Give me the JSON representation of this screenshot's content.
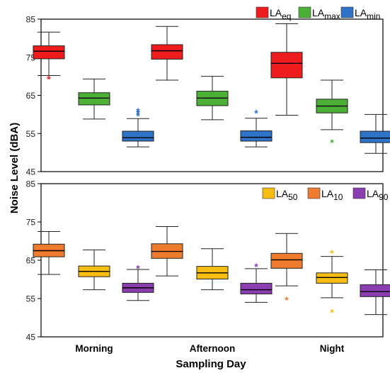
{
  "chart_data": {
    "type": "boxplot",
    "ylabel": "Noise Level (dBA)",
    "xlabel": "Sampling Day",
    "categories": [
      "Morning",
      "Afternoon",
      "Night"
    ],
    "colors": {
      "LAeq": "#ee1c1c",
      "LAmax": "#4caf36",
      "LAmin": "#2f73c9",
      "LA50": "#f8bd12",
      "LA10": "#ef7c2e",
      "LA90": "#8a3eb0"
    },
    "panels": [
      {
        "ylim": [
          45,
          85
        ],
        "yticks": [
          45,
          55,
          65,
          75,
          85
        ],
        "legend_position": "top-right",
        "series": [
          {
            "key": "LAeq",
            "base": "LA",
            "sub": "eq",
            "color": "#ee1c1c",
            "boxes": [
              {
                "min": 70.2,
                "q1": 74.6,
                "median": 76.6,
                "q3": 78.0,
                "max": 81.6,
                "outliers": [
                  69.5
                ]
              },
              {
                "min": 69.0,
                "q1": 74.5,
                "median": 76.7,
                "q3": 78.3,
                "max": 83.1,
                "outliers": []
              },
              {
                "min": 59.8,
                "q1": 69.6,
                "median": 73.4,
                "q3": 76.3,
                "max": 83.8,
                "outliers": []
              }
            ]
          },
          {
            "key": "LAmax",
            "base": "LA",
            "sub": "max",
            "color": "#4caf36",
            "boxes": [
              {
                "min": 58.8,
                "q1": 62.5,
                "median": 64.3,
                "q3": 65.7,
                "max": 69.3,
                "outliers": []
              },
              {
                "min": 58.6,
                "q1": 62.3,
                "median": 64.3,
                "q3": 66.1,
                "max": 70.0,
                "outliers": []
              },
              {
                "min": 56.0,
                "q1": 60.4,
                "median": 62.2,
                "q3": 64.0,
                "max": 69.0,
                "outliers": [
                  52.8
                ]
              }
            ]
          },
          {
            "key": "LAmin",
            "base": "LA",
            "sub": "min",
            "color": "#2f73c9",
            "boxes": [
              {
                "min": 51.5,
                "q1": 53.0,
                "median": 53.9,
                "q3": 55.6,
                "max": 58.9,
                "outliers": [
                  59.8,
                  60.4,
                  61.0
                ]
              },
              {
                "min": 51.5,
                "q1": 53.0,
                "median": 54.0,
                "q3": 55.7,
                "max": 59.0,
                "outliers": [
                  60.5
                ]
              },
              {
                "min": 49.8,
                "q1": 52.6,
                "median": 53.8,
                "q3": 55.6,
                "max": 60.0,
                "outliers": []
              }
            ]
          }
        ]
      },
      {
        "ylim": [
          45,
          85
        ],
        "yticks": [
          45,
          55,
          65,
          75,
          85
        ],
        "legend_position": "top-right",
        "series": [
          {
            "key": "LA10",
            "base": "LA",
            "sub": "10",
            "color": "#ef7c2e",
            "boxes": [
              {
                "min": 61.3,
                "q1": 65.9,
                "median": 67.5,
                "q3": 69.2,
                "max": 72.5,
                "outliers": []
              },
              {
                "min": 60.9,
                "q1": 65.5,
                "median": 67.3,
                "q3": 69.3,
                "max": 73.8,
                "outliers": []
              },
              {
                "min": 58.3,
                "q1": 62.9,
                "median": 65.1,
                "q3": 66.8,
                "max": 72.0,
                "outliers": [
                  54.8
                ]
              }
            ]
          },
          {
            "key": "LA50",
            "base": "LA",
            "sub": "50",
            "color": "#f8bd12",
            "boxes": [
              {
                "min": 57.3,
                "q1": 60.7,
                "median": 62.1,
                "q3": 63.5,
                "max": 67.7,
                "outliers": []
              },
              {
                "min": 57.3,
                "q1": 60.1,
                "median": 61.7,
                "q3": 63.4,
                "max": 68.0,
                "outliers": []
              },
              {
                "min": 55.2,
                "q1": 59.0,
                "median": 60.5,
                "q3": 61.7,
                "max": 66.0,
                "outliers": [
                  67.0,
                  51.6
                ]
              }
            ]
          },
          {
            "key": "LA90",
            "base": "LA",
            "sub": "90",
            "color": "#8a3eb0",
            "boxes": [
              {
                "min": 54.5,
                "q1": 56.6,
                "median": 57.8,
                "q3": 59.0,
                "max": 62.6,
                "outliers": [
                  63.1
                ]
              },
              {
                "min": 54.0,
                "q1": 56.2,
                "median": 57.3,
                "q3": 59.0,
                "max": 62.8,
                "outliers": [
                  63.5
                ]
              },
              {
                "min": 50.8,
                "q1": 55.5,
                "median": 56.8,
                "q3": 58.6,
                "max": 62.5,
                "outliers": []
              }
            ]
          }
        ],
        "legend_order": [
          "LA50",
          "LA10",
          "LA90"
        ]
      }
    ]
  }
}
